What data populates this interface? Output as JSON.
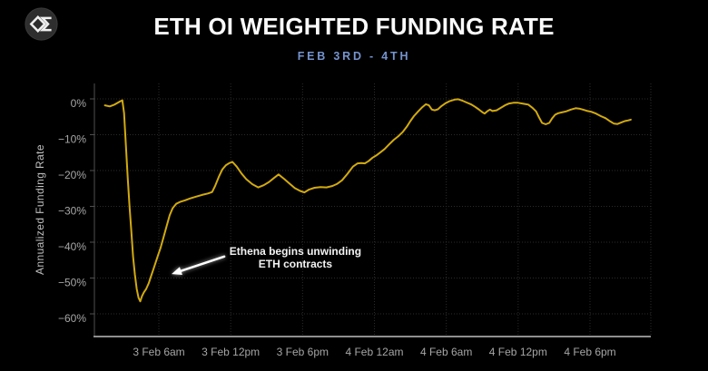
{
  "header": {
    "title": "ETH OI WEIGHTED FUNDING RATE",
    "subtitle": "FEB 3RD - 4TH"
  },
  "logo": {
    "icon": "diamond-sigma-logo-icon"
  },
  "colors": {
    "background": "#000000",
    "title": "#FAFAFA",
    "subtitle": "#7593CE",
    "line": "#D2AA10",
    "grid": "#2B2B2B",
    "x_axis": "#8F8F8F",
    "y_axis": "#4F4F4F",
    "tick_text": "#A6A6A6",
    "axis_title": "#BFBFBF",
    "annotation": "#F3F3F3",
    "logo_circle": "#2E2E2E",
    "logo_glyph": "#EFEFEF"
  },
  "chart_data": {
    "type": "line",
    "title": "ETH OI WEIGHTED FUNDING RATE",
    "subtitle": "FEB 3RD - 4TH",
    "xlabel": "",
    "ylabel": "Annualized Funding Rate",
    "x_unit": "hours since 3 Feb 00:00",
    "ylim": [
      -66,
      4
    ],
    "xlim": [
      0.6,
      47
    ],
    "grid": true,
    "legend_position": "none",
    "x_ticks": [
      {
        "t": 6,
        "label": "3 Feb 6am"
      },
      {
        "t": 12,
        "label": "3 Feb 12pm"
      },
      {
        "t": 18,
        "label": "3 Feb 6pm"
      },
      {
        "t": 24,
        "label": "4 Feb 12am"
      },
      {
        "t": 30,
        "label": "4 Feb 6am"
      },
      {
        "t": 36,
        "label": "4 Feb 12pm"
      },
      {
        "t": 42,
        "label": "4 Feb 6pm"
      }
    ],
    "y_ticks": [
      {
        "v": 0,
        "label": "0%"
      },
      {
        "v": -10,
        "label": "−10%"
      },
      {
        "v": -20,
        "label": "−20%"
      },
      {
        "v": -30,
        "label": "−30%"
      },
      {
        "v": -40,
        "label": "−40%"
      },
      {
        "v": -50,
        "label": "−50%"
      },
      {
        "v": -60,
        "label": "−60%"
      }
    ],
    "annotation": {
      "lines": [
        "Ethena begins unwinding",
        "ETH contracts"
      ],
      "text_anchor": {
        "t": 17.4,
        "v": -44.3
      },
      "arrow_from": {
        "t": 11.46,
        "v": -44.0
      },
      "arrow_to": {
        "t": 7.06,
        "v": -48.9
      }
    },
    "series": [
      {
        "name": "ETH OI weighted funding rate (annualized %)",
        "color": "#D2AA10",
        "points": [
          [
            1.5,
            -1.8
          ],
          [
            1.9,
            -2.1
          ],
          [
            2.3,
            -1.6
          ],
          [
            2.7,
            -0.8
          ],
          [
            2.95,
            -0.4
          ],
          [
            3.1,
            -4
          ],
          [
            3.25,
            -13
          ],
          [
            3.4,
            -22
          ],
          [
            3.55,
            -30
          ],
          [
            3.7,
            -37
          ],
          [
            3.85,
            -44
          ],
          [
            4.0,
            -49
          ],
          [
            4.15,
            -53
          ],
          [
            4.3,
            -55.5
          ],
          [
            4.45,
            -56.5
          ],
          [
            4.6,
            -55
          ],
          [
            4.75,
            -54
          ],
          [
            4.95,
            -53
          ],
          [
            5.15,
            -51.5
          ],
          [
            5.35,
            -49.5
          ],
          [
            5.55,
            -47.5
          ],
          [
            5.75,
            -45.5
          ],
          [
            5.95,
            -43.5
          ],
          [
            6.15,
            -41.5
          ],
          [
            6.4,
            -38.5
          ],
          [
            6.65,
            -35.5
          ],
          [
            6.9,
            -32.5
          ],
          [
            7.15,
            -30.5
          ],
          [
            7.45,
            -29.3
          ],
          [
            7.8,
            -28.7
          ],
          [
            8.2,
            -28.3
          ],
          [
            8.6,
            -27.8
          ],
          [
            9.1,
            -27.3
          ],
          [
            9.6,
            -26.8
          ],
          [
            10.1,
            -26.4
          ],
          [
            10.45,
            -26.0
          ],
          [
            10.7,
            -24.3
          ],
          [
            11.0,
            -21.8
          ],
          [
            11.3,
            -19.7
          ],
          [
            11.6,
            -18.5
          ],
          [
            11.9,
            -17.9
          ],
          [
            12.15,
            -17.6
          ],
          [
            12.5,
            -18.9
          ],
          [
            12.9,
            -20.8
          ],
          [
            13.3,
            -22.4
          ],
          [
            13.8,
            -23.8
          ],
          [
            14.3,
            -24.7
          ],
          [
            14.75,
            -24.1
          ],
          [
            15.2,
            -23.2
          ],
          [
            15.6,
            -22.1
          ],
          [
            16.0,
            -21.1
          ],
          [
            16.45,
            -22.3
          ],
          [
            16.9,
            -23.6
          ],
          [
            17.35,
            -24.9
          ],
          [
            17.8,
            -25.7
          ],
          [
            18.15,
            -26.1
          ],
          [
            18.55,
            -25.3
          ],
          [
            19.0,
            -24.8
          ],
          [
            19.5,
            -24.6
          ],
          [
            20.0,
            -24.7
          ],
          [
            20.5,
            -24.3
          ],
          [
            20.9,
            -23.7
          ],
          [
            21.3,
            -22.7
          ],
          [
            21.75,
            -20.9
          ],
          [
            22.2,
            -18.9
          ],
          [
            22.6,
            -18.0
          ],
          [
            22.9,
            -17.9
          ],
          [
            23.2,
            -18.0
          ],
          [
            23.5,
            -17.4
          ],
          [
            23.85,
            -16.4
          ],
          [
            24.15,
            -15.8
          ],
          [
            24.5,
            -14.9
          ],
          [
            24.85,
            -14.0
          ],
          [
            25.2,
            -12.8
          ],
          [
            25.6,
            -11.5
          ],
          [
            26.0,
            -10.4
          ],
          [
            26.35,
            -9.3
          ],
          [
            26.7,
            -7.8
          ],
          [
            27.0,
            -6.2
          ],
          [
            27.3,
            -4.8
          ],
          [
            27.65,
            -3.5
          ],
          [
            28.0,
            -2.3
          ],
          [
            28.3,
            -1.5
          ],
          [
            28.55,
            -1.8
          ],
          [
            28.8,
            -3.0
          ],
          [
            29.05,
            -3.2
          ],
          [
            29.3,
            -2.9
          ],
          [
            29.6,
            -2.0
          ],
          [
            29.95,
            -1.2
          ],
          [
            30.3,
            -0.6
          ],
          [
            30.7,
            -0.2
          ],
          [
            31.0,
            -0.1
          ],
          [
            31.35,
            -0.5
          ],
          [
            31.7,
            -1.0
          ],
          [
            32.05,
            -1.5
          ],
          [
            32.4,
            -2.2
          ],
          [
            32.7,
            -2.9
          ],
          [
            33.0,
            -3.7
          ],
          [
            33.2,
            -4.1
          ],
          [
            33.45,
            -3.4
          ],
          [
            33.65,
            -3.0
          ],
          [
            33.85,
            -3.4
          ],
          [
            34.2,
            -3.2
          ],
          [
            34.55,
            -2.5
          ],
          [
            34.9,
            -1.8
          ],
          [
            35.25,
            -1.3
          ],
          [
            35.6,
            -1.1
          ],
          [
            36.0,
            -1.1
          ],
          [
            36.5,
            -1.4
          ],
          [
            36.85,
            -1.6
          ],
          [
            37.2,
            -2.5
          ],
          [
            37.5,
            -3.5
          ],
          [
            37.75,
            -5.2
          ],
          [
            38.0,
            -6.7
          ],
          [
            38.3,
            -7.1
          ],
          [
            38.6,
            -6.7
          ],
          [
            38.85,
            -5.4
          ],
          [
            39.1,
            -4.4
          ],
          [
            39.35,
            -4.0
          ],
          [
            39.6,
            -3.8
          ],
          [
            40.0,
            -3.5
          ],
          [
            40.4,
            -3.0
          ],
          [
            40.8,
            -2.6
          ],
          [
            41.1,
            -2.7
          ],
          [
            41.5,
            -3.1
          ],
          [
            41.8,
            -3.4
          ],
          [
            42.1,
            -3.6
          ],
          [
            42.5,
            -4.1
          ],
          [
            42.9,
            -4.8
          ],
          [
            43.3,
            -5.4
          ],
          [
            43.7,
            -6.3
          ],
          [
            44.0,
            -6.9
          ],
          [
            44.3,
            -7.0
          ],
          [
            44.6,
            -6.6
          ],
          [
            44.9,
            -6.2
          ],
          [
            45.2,
            -6.0
          ],
          [
            45.4,
            -5.8
          ]
        ]
      }
    ]
  }
}
